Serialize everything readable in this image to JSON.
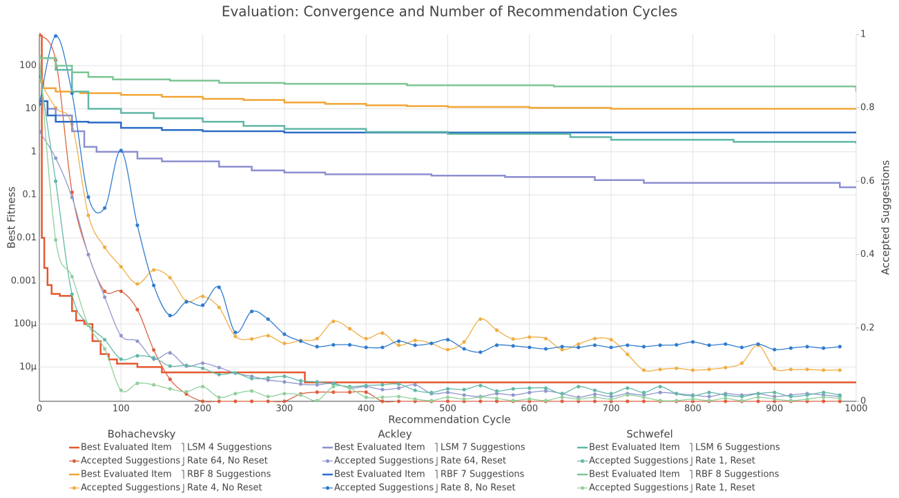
{
  "chart_data": {
    "type": "line",
    "title": "Evaluation: Convergence and Number of Recommendation Cycles",
    "x_label": "Recommendation Cycle",
    "y_label": "Best Fitness",
    "y2_label": "Accepted Suggestions",
    "xlim": [
      0,
      1000
    ],
    "xticks": [
      0,
      100,
      200,
      300,
      400,
      500,
      600,
      700,
      800,
      900,
      1000
    ],
    "ylim": [
      1.6e-06,
      530
    ],
    "y_log": true,
    "yticks": [
      {
        "value": 1e-05,
        "label": "10µ"
      },
      {
        "value": 0.0001,
        "label": "100µ"
      },
      0.001,
      0.01,
      0.1,
      1,
      10,
      100
    ],
    "y2lim": [
      0,
      1
    ],
    "y2ticks": [
      0,
      0.2,
      0.4,
      0.6,
      0.8,
      1
    ],
    "grid": true,
    "legend_groups": [
      {
        "title": "Bohachevsky",
        "labels": [
          "LSM 4 Suggestions",
          "Rate 64, No Reset",
          "RBF 8 Suggestions",
          "Rate 4, No Reset"
        ]
      },
      {
        "title": "Ackley",
        "labels": [
          "LSM 7 Suggestions",
          "Rate 64, Reset",
          "RBF 7 Suggestions",
          "Rate 8, No Reset"
        ]
      },
      {
        "title": "Schwefel",
        "labels": [
          "LSM 6 Suggestions",
          "Rate 1, Reset",
          "RBF 8 Suggestions",
          "Rate 1, Reset"
        ]
      }
    ],
    "series": [
      {
        "name": "Best Evaluated Item",
        "color": "#e4572e",
        "axis": "y",
        "mode": "step",
        "x": [
          0,
          3,
          6,
          10,
          15,
          25,
          40,
          45,
          55,
          65,
          75,
          85,
          95,
          120,
          150,
          325,
          1000
        ],
        "values": [
          500,
          0.01,
          0.002,
          0.0008,
          0.0005,
          0.00045,
          0.0002,
          0.00012,
          0.0001,
          4e-05,
          2e-05,
          1.5e-05,
          1.2e-05,
          1e-05,
          7.5e-06,
          4.4e-06,
          4.4e-06
        ]
      },
      {
        "name": "Accepted Suggestions",
        "color": "#dc6040",
        "axis": "y2",
        "mode": "spline",
        "x": [
          0,
          20,
          40,
          60,
          80,
          100,
          120,
          140,
          160,
          180,
          200,
          220,
          240,
          260,
          280,
          300,
          320,
          340,
          360,
          380,
          400,
          420,
          440,
          460,
          480,
          500,
          520,
          540,
          560,
          580,
          600,
          620,
          640,
          660,
          680,
          700,
          720,
          740,
          760,
          780,
          800,
          820,
          840,
          860,
          880,
          900,
          920,
          940,
          960,
          980
        ],
        "values": [
          1.0,
          0.93,
          0.57,
          0.4,
          0.3,
          0.3,
          0.25,
          0.14,
          0.06,
          0.02,
          0,
          0,
          0,
          0,
          0,
          0,
          0.02,
          0.025,
          0.025,
          0.025,
          0.025,
          0,
          0,
          0,
          0,
          0,
          0,
          0,
          0,
          0,
          0,
          0,
          0,
          0,
          0,
          0,
          0,
          0,
          0,
          0,
          0,
          0,
          0,
          0,
          0,
          0,
          0,
          0,
          0,
          0
        ]
      },
      {
        "name": "Best Evaluated Item",
        "color": "#f2a535",
        "axis": "y",
        "mode": "step",
        "x": [
          0,
          5,
          20,
          50,
          100,
          150,
          200,
          250,
          300,
          350,
          400,
          450,
          500,
          600,
          700,
          1000
        ],
        "values": [
          45,
          30,
          25,
          23,
          21,
          19,
          17,
          16,
          14,
          13,
          12,
          11.5,
          11,
          10.5,
          10,
          10
        ]
      },
      {
        "name": "Accepted Suggestions",
        "color": "#f0ae45",
        "axis": "y2",
        "mode": "spline",
        "x": [
          0,
          20,
          40,
          60,
          80,
          100,
          120,
          140,
          160,
          180,
          200,
          220,
          240,
          260,
          280,
          300,
          320,
          340,
          360,
          380,
          400,
          420,
          440,
          460,
          480,
          500,
          520,
          540,
          560,
          580,
          600,
          620,
          640,
          660,
          680,
          700,
          720,
          740,
          760,
          780,
          800,
          820,
          840,
          860,
          880,
          900,
          920,
          940,
          960,
          980
        ],
        "values": [
          0.876,
          0.8,
          0.755,
          0.507,
          0.42,
          0.367,
          0.32,
          0.358,
          0.337,
          0.273,
          0.286,
          0.256,
          0.177,
          0.17,
          0.179,
          0.158,
          0.166,
          0.171,
          0.218,
          0.198,
          0.171,
          0.186,
          0.153,
          0.166,
          0.158,
          0.141,
          0.162,
          0.224,
          0.194,
          0.17,
          0.175,
          0.171,
          0.141,
          0.156,
          0.171,
          0.168,
          0.128,
          0.085,
          0.087,
          0.09,
          0.085,
          0.087,
          0.092,
          0.104,
          0.153,
          0.089,
          0.087,
          0.087,
          0.085,
          0.085
        ]
      },
      {
        "name": "Best Evaluated Item",
        "color": "#8c8fcf",
        "axis": "y",
        "mode": "step",
        "x": [
          0,
          10,
          20,
          40,
          55,
          70,
          120,
          150,
          220,
          260,
          300,
          350,
          480,
          570,
          680,
          740,
          980,
          1000
        ],
        "values": [
          15,
          10,
          7,
          3,
          1.3,
          1,
          0.7,
          0.6,
          0.45,
          0.37,
          0.33,
          0.3,
          0.28,
          0.26,
          0.22,
          0.19,
          0.15,
          0.15
        ]
      },
      {
        "name": "Accepted Suggestions",
        "color": "#9096cc",
        "axis": "y2",
        "mode": "spline",
        "x": [
          0,
          20,
          40,
          60,
          80,
          100,
          120,
          140,
          160,
          180,
          200,
          220,
          240,
          260,
          280,
          300,
          320,
          340,
          360,
          380,
          400,
          420,
          440,
          460,
          480,
          500,
          520,
          540,
          560,
          580,
          600,
          620,
          640,
          660,
          680,
          700,
          720,
          740,
          760,
          780,
          800,
          820,
          840,
          860,
          880,
          900,
          920,
          940,
          960,
          980
        ],
        "values": [
          0.736,
          0.663,
          0.556,
          0.4,
          0.284,
          0.179,
          0.164,
          0.115,
          0.132,
          0.096,
          0.104,
          0.092,
          0.077,
          0.068,
          0.058,
          0.053,
          0.047,
          0.045,
          0.049,
          0.036,
          0.04,
          0.032,
          0.036,
          0.045,
          0.021,
          0.024,
          0.017,
          0.013,
          0.021,
          0.017,
          0.024,
          0.028,
          0.021,
          0.011,
          0.019,
          0.013,
          0.021,
          0.017,
          0.024,
          0.021,
          0.017,
          0.013,
          0.021,
          0.017,
          0.021,
          0.013,
          0.017,
          0.021,
          0.017,
          0.013
        ]
      },
      {
        "name": "Best Evaluated Item",
        "color": "#2b6cc4",
        "axis": "y",
        "mode": "step",
        "x": [
          0,
          10,
          20,
          60,
          100,
          150,
          200,
          300,
          1000
        ],
        "values": [
          15,
          7,
          5,
          4.8,
          3.6,
          3.2,
          3.0,
          2.8,
          2.7
        ]
      },
      {
        "name": "Accepted Suggestions",
        "color": "#2f7bcf",
        "axis": "y2",
        "mode": "spline",
        "x": [
          0,
          20,
          40,
          60,
          80,
          100,
          120,
          140,
          160,
          180,
          200,
          220,
          240,
          260,
          280,
          300,
          320,
          340,
          360,
          380,
          400,
          420,
          440,
          460,
          480,
          500,
          520,
          540,
          560,
          580,
          600,
          620,
          640,
          660,
          680,
          700,
          720,
          740,
          760,
          780,
          800,
          820,
          840,
          860,
          880,
          900,
          920,
          940,
          960,
          980
        ],
        "values": [
          0.81,
          0.996,
          0.84,
          0.557,
          0.527,
          0.684,
          0.48,
          0.316,
          0.234,
          0.271,
          0.262,
          0.311,
          0.188,
          0.245,
          0.224,
          0.183,
          0.164,
          0.149,
          0.154,
          0.154,
          0.147,
          0.147,
          0.164,
          0.153,
          0.158,
          0.168,
          0.143,
          0.134,
          0.153,
          0.151,
          0.147,
          0.143,
          0.149,
          0.147,
          0.153,
          0.147,
          0.153,
          0.149,
          0.153,
          0.154,
          0.162,
          0.153,
          0.156,
          0.147,
          0.156,
          0.141,
          0.145,
          0.149,
          0.145,
          0.149
        ]
      },
      {
        "name": "Best Evaluated Item",
        "color": "#5fb7a6",
        "axis": "y",
        "mode": "step",
        "x": [
          0,
          20,
          40,
          60,
          100,
          140,
          200,
          250,
          300,
          400,
          500,
          650,
          700,
          850,
          1000
        ],
        "values": [
          150,
          80,
          25,
          10,
          8,
          6,
          5,
          4,
          3.4,
          2.9,
          2.6,
          2.2,
          1.9,
          1.7,
          1.55
        ]
      },
      {
        "name": "Accepted Suggestions",
        "color": "#62b8a8",
        "axis": "y2",
        "mode": "spline",
        "x": [
          0,
          20,
          40,
          60,
          80,
          100,
          120,
          140,
          160,
          180,
          200,
          220,
          240,
          260,
          280,
          300,
          320,
          340,
          360,
          380,
          400,
          420,
          440,
          460,
          480,
          500,
          520,
          540,
          560,
          580,
          600,
          620,
          640,
          660,
          680,
          700,
          720,
          740,
          760,
          780,
          800,
          820,
          840,
          860,
          880,
          900,
          920,
          940,
          960,
          980
        ],
        "values": [
          0.9,
          0.6,
          0.292,
          0.209,
          0.168,
          0.115,
          0.124,
          0.119,
          0.096,
          0.098,
          0.09,
          0.073,
          0.077,
          0.062,
          0.064,
          0.068,
          0.056,
          0.053,
          0.047,
          0.04,
          0.043,
          0.045,
          0.047,
          0.03,
          0.024,
          0.034,
          0.032,
          0.043,
          0.028,
          0.034,
          0.036,
          0.036,
          0.021,
          0.04,
          0.03,
          0.021,
          0.036,
          0.024,
          0.04,
          0.021,
          0.015,
          0.024,
          0.017,
          0.013,
          0.021,
          0.024,
          0.013,
          0.017,
          0.024,
          0.017
        ]
      },
      {
        "name": "Best Evaluated Item",
        "color": "#7dc593",
        "axis": "y",
        "mode": "step",
        "x": [
          0,
          20,
          40,
          60,
          90,
          160,
          220,
          300,
          450,
          630,
          1000
        ],
        "values": [
          150,
          100,
          70,
          55,
          48,
          45,
          40,
          38,
          35,
          33,
          25
        ]
      },
      {
        "name": "Accepted Suggestions",
        "color": "#92d09d",
        "axis": "y2",
        "mode": "spline",
        "x": [
          0,
          20,
          40,
          60,
          80,
          100,
          120,
          140,
          160,
          180,
          200,
          220,
          240,
          260,
          280,
          300,
          320,
          340,
          360,
          380,
          400,
          420,
          440,
          460,
          480,
          500,
          520,
          540,
          560,
          580,
          600,
          620,
          640,
          660,
          680,
          700,
          720,
          740,
          760,
          780,
          800,
          820,
          840,
          860,
          880,
          900,
          920,
          940,
          960,
          980
        ],
        "values": [
          0.94,
          0.44,
          0.34,
          0.207,
          0.143,
          0.03,
          0.049,
          0.045,
          0.034,
          0.026,
          0.04,
          0.011,
          0.021,
          0.028,
          0.013,
          0.021,
          0.017,
          0.002,
          0.04,
          0.036,
          0.011,
          0.011,
          0.013,
          0.006,
          0.002,
          0.011,
          0.006,
          0.011,
          0.008,
          0.002,
          0.006,
          0.002,
          0.011,
          0.006,
          0.011,
          0.006,
          0.017,
          0.011,
          0.002,
          0.002,
          0.006,
          0.002,
          0.008,
          0.002,
          0.011,
          0.006,
          0.002,
          0.006,
          0.011,
          0.008
        ]
      }
    ]
  }
}
